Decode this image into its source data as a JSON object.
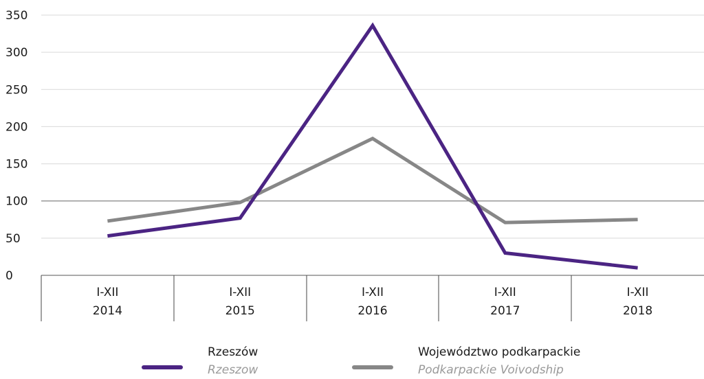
{
  "colors": {
    "rzeszow": "#4b2483",
    "voivodship": "#878787",
    "grid": "#d9d9d9",
    "axis": "#555555"
  },
  "chart_data": {
    "type": "line",
    "categories": [
      [
        "I-XII",
        "2014"
      ],
      [
        "I-XII",
        "2015"
      ],
      [
        "I-XII",
        "2016"
      ],
      [
        "I-XII",
        "2017"
      ],
      [
        "I-XII",
        "2018"
      ]
    ],
    "y_ticks": [
      "0",
      "50",
      "100",
      "150",
      "200",
      "250",
      "300",
      "350"
    ],
    "ylim": [
      0,
      350
    ],
    "reference_line": 100,
    "grid": true,
    "legend_position": "bottom",
    "series": [
      {
        "name": "Rzeszów",
        "name_en": "Rzeszow",
        "color": "#4b2483",
        "values": [
          53,
          77,
          336,
          30,
          10
        ]
      },
      {
        "name": "Województwo podkarpackie",
        "name_en": "Podkarpackie Voivodship",
        "color": "#878787",
        "values": [
          73,
          98,
          184,
          71,
          75
        ]
      }
    ]
  },
  "legend": [
    {
      "label": "Rzeszów",
      "label_en": "Rzeszow"
    },
    {
      "label": "Województwo podkarpackie",
      "label_en": "Podkarpackie Voivodship"
    }
  ]
}
